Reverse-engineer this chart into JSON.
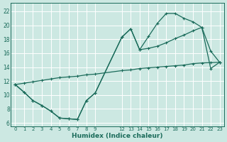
{
  "xlabel": "Humidex (Indice chaleur)",
  "bg_color": "#cce8e2",
  "grid_color": "#ffffff",
  "line_color": "#1a6b5a",
  "xlim": [
    -0.5,
    23.5
  ],
  "ylim": [
    5.5,
    23.2
  ],
  "xticks": [
    0,
    1,
    2,
    3,
    4,
    5,
    6,
    7,
    8,
    9,
    12,
    13,
    14,
    15,
    16,
    17,
    18,
    19,
    20,
    21,
    22,
    23
  ],
  "yticks": [
    6,
    8,
    10,
    12,
    14,
    16,
    18,
    20,
    22
  ],
  "curve1_x": [
    0,
    1,
    2,
    3,
    4,
    5,
    6,
    7,
    8,
    9,
    12,
    13,
    14,
    15,
    16,
    17,
    18,
    19,
    20,
    21,
    22,
    23
  ],
  "curve1_y": [
    11.5,
    10.4,
    9.2,
    8.5,
    7.7,
    6.7,
    6.6,
    6.5,
    9.2,
    10.3,
    18.3,
    19.5,
    16.5,
    18.4,
    20.3,
    21.7,
    21.7,
    21.0,
    20.5,
    19.7,
    16.3,
    14.7
  ],
  "curve2_x": [
    0,
    1,
    2,
    3,
    4,
    5,
    6,
    7,
    8,
    9,
    12,
    13,
    14,
    15,
    16,
    17,
    18,
    19,
    20,
    21,
    22,
    23
  ],
  "curve2_y": [
    11.5,
    10.4,
    9.2,
    8.5,
    7.7,
    6.7,
    6.6,
    6.5,
    9.2,
    10.3,
    18.3,
    19.5,
    16.5,
    16.7,
    17.0,
    17.5,
    18.1,
    18.6,
    19.2,
    19.7,
    13.8,
    14.7
  ],
  "line3_x": [
    0,
    1,
    2,
    3,
    4,
    5,
    6,
    7,
    8,
    9,
    12,
    13,
    14,
    15,
    16,
    17,
    18,
    19,
    20,
    21,
    22,
    23
  ],
  "line3_y": [
    11.5,
    11.7,
    11.9,
    12.1,
    12.3,
    12.5,
    12.6,
    12.7,
    12.9,
    13.0,
    13.5,
    13.6,
    13.8,
    13.9,
    14.0,
    14.1,
    14.2,
    14.3,
    14.5,
    14.6,
    14.65,
    14.7
  ]
}
